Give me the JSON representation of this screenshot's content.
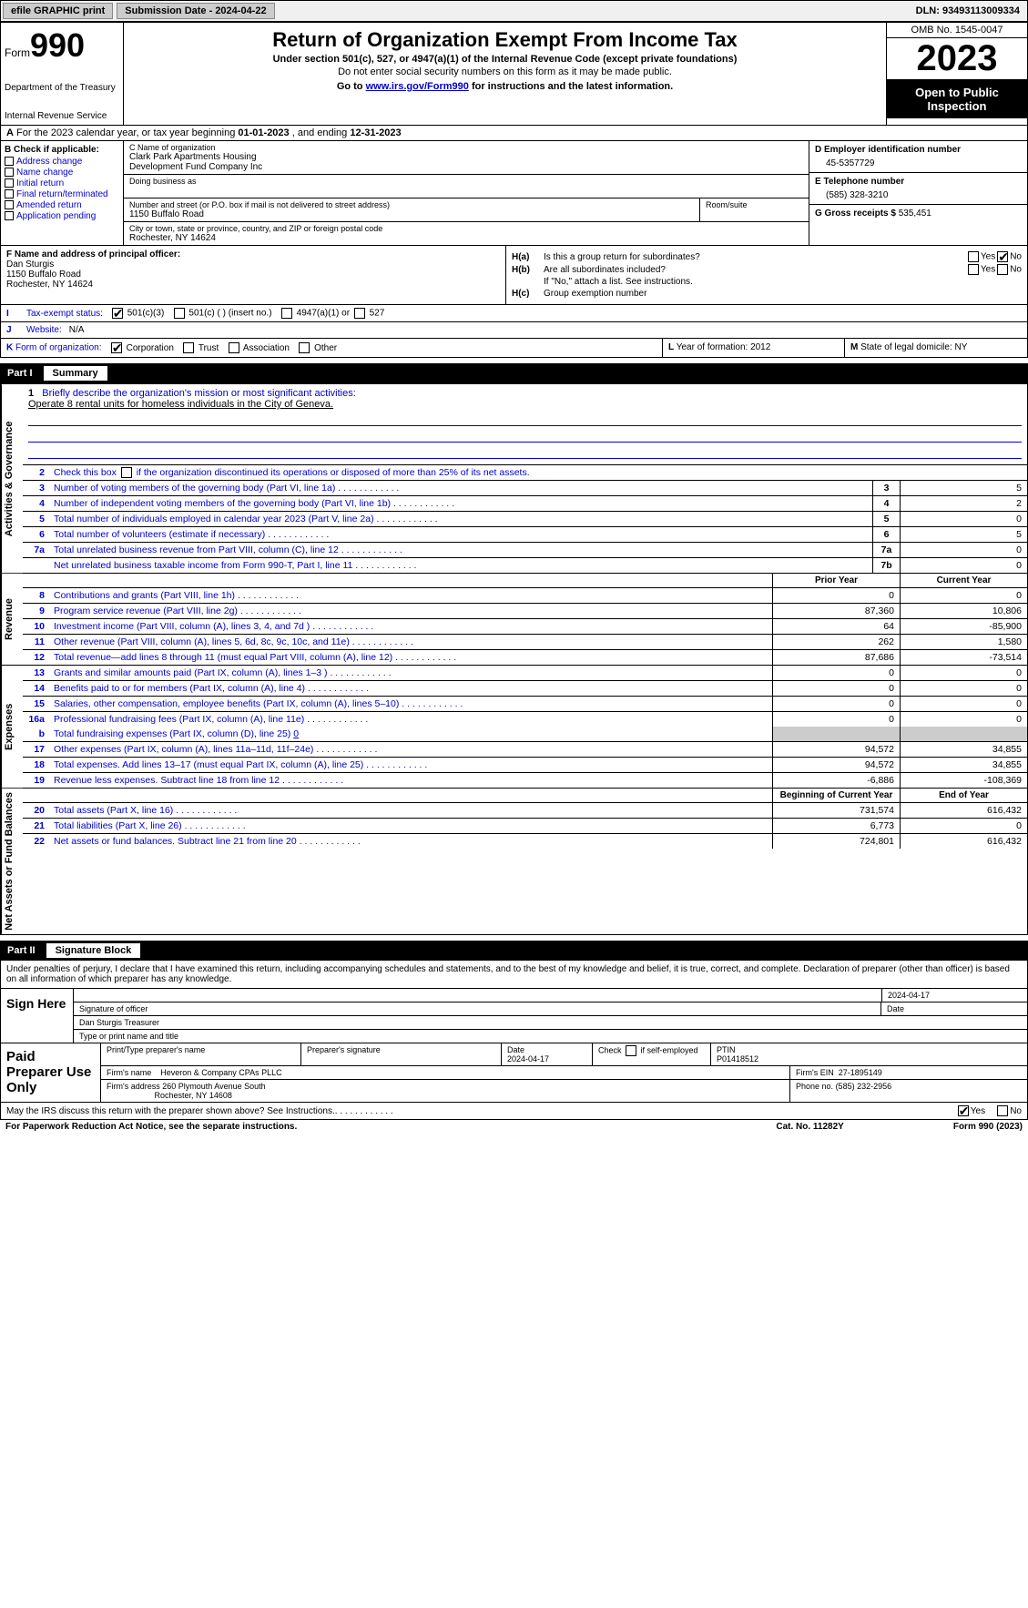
{
  "topbar": {
    "efile": "efile GRAPHIC print",
    "submission_label": "Submission Date - 2024-04-22",
    "dln_label": "DLN: 93493113009334"
  },
  "header": {
    "form_prefix": "Form",
    "form_number": "990",
    "dept": "Department of the Treasury",
    "irs": "Internal Revenue Service",
    "title": "Return of Organization Exempt From Income Tax",
    "sub1": "Under section 501(c), 527, or 4947(a)(1) of the Internal Revenue Code (except private foundations)",
    "sub2": "Do not enter social security numbers on this form as it may be made public.",
    "sub3_pre": "Go to ",
    "sub3_link": "www.irs.gov/Form990",
    "sub3_post": " for instructions and the latest information.",
    "omb": "OMB No. 1545-0047",
    "year": "2023",
    "inspection": "Open to Public Inspection"
  },
  "line_a": {
    "prefix": "A",
    "text": "For the 2023 calendar year, or tax year beginning ",
    "begin": "01-01-2023",
    "mid": " , and ending ",
    "end": "12-31-2023"
  },
  "section_b": {
    "header": "B Check if applicable:",
    "items": [
      "Address change",
      "Name change",
      "Initial return",
      "Final return/terminated",
      "Amended return",
      "Application pending"
    ]
  },
  "section_c": {
    "name_lbl": "C Name of organization",
    "name1": "Clark Park Apartments Housing",
    "name2": "Development Fund Company Inc",
    "dba_lbl": "Doing business as",
    "addr_lbl": "Number and street (or P.O. box if mail is not delivered to street address)",
    "addr": "1150 Buffalo Road",
    "room_lbl": "Room/suite",
    "city_lbl": "City or town, state or province, country, and ZIP or foreign postal code",
    "city": "Rochester, NY  14624"
  },
  "section_d": {
    "ein_lbl": "D Employer identification number",
    "ein": "45-5357729",
    "phone_lbl": "E Telephone number",
    "phone": "(585) 328-3210",
    "gross_lbl": "G Gross receipts $ ",
    "gross": "535,451"
  },
  "section_f": {
    "lbl": "F  Name and address of principal officer:",
    "name": "Dan Sturgis",
    "addr": "1150 Buffalo Road",
    "city": "Rochester, NY  14624"
  },
  "section_h": {
    "ha_lbl": "H(a)",
    "ha_txt": "Is this a group return for subordinates?",
    "hb_lbl": "H(b)",
    "hb_txt": "Are all subordinates included?",
    "hb_note": "If \"No,\" attach a list. See instructions.",
    "hc_lbl": "H(c)",
    "hc_txt": "Group exemption number",
    "yes": "Yes",
    "no": "No"
  },
  "section_i": {
    "lbl": "I",
    "txt": "Tax-exempt status:",
    "opts": [
      "501(c)(3)",
      "501(c) (  ) (insert no.)",
      "4947(a)(1) or",
      "527"
    ]
  },
  "section_j": {
    "lbl": "J",
    "txt": "Website:",
    "val": "N/A"
  },
  "section_k": {
    "lbl": "K",
    "txt": "Form of organization:",
    "opts": [
      "Corporation",
      "Trust",
      "Association",
      "Other"
    ]
  },
  "section_l": {
    "lbl": "L",
    "txt": "Year of formation: ",
    "val": "2012"
  },
  "section_m": {
    "lbl": "M",
    "txt": "State of legal domicile: ",
    "val": "NY"
  },
  "part1": {
    "hdr_num": "Part I",
    "hdr_txt": "Summary",
    "vtab1": "Activities & Governance",
    "vtab2": "Revenue",
    "vtab3": "Expenses",
    "vtab4": "Net Assets or Fund Balances",
    "line1_lbl": "Briefly describe the organization's mission or most significant activities:",
    "line1_val": "Operate 8 rental units for homeless individuals in the City of Geneva.",
    "line2": "Check this box       if the organization discontinued its operations or disposed of more than 25% of its net assets.",
    "rows_gov": [
      {
        "n": "3",
        "t": "Number of voting members of the governing body (Part VI, line 1a)",
        "b": "3",
        "v": "5"
      },
      {
        "n": "4",
        "t": "Number of independent voting members of the governing body (Part VI, line 1b)",
        "b": "4",
        "v": "2"
      },
      {
        "n": "5",
        "t": "Total number of individuals employed in calendar year 2023 (Part V, line 2a)",
        "b": "5",
        "v": "0"
      },
      {
        "n": "6",
        "t": "Total number of volunteers (estimate if necessary)",
        "b": "6",
        "v": "5"
      },
      {
        "n": "7a",
        "t": "Total unrelated business revenue from Part VIII, column (C), line 12",
        "b": "7a",
        "v": "0"
      },
      {
        "n": "",
        "t": "Net unrelated business taxable income from Form 990-T, Part I, line 11",
        "b": "7b",
        "v": "0"
      }
    ],
    "col_prior": "Prior Year",
    "col_current": "Current Year",
    "rows_rev": [
      {
        "n": "8",
        "t": "Contributions and grants (Part VIII, line 1h)",
        "p": "0",
        "c": "0"
      },
      {
        "n": "9",
        "t": "Program service revenue (Part VIII, line 2g)",
        "p": "87,360",
        "c": "10,806"
      },
      {
        "n": "10",
        "t": "Investment income (Part VIII, column (A), lines 3, 4, and 7d )",
        "p": "64",
        "c": "-85,900"
      },
      {
        "n": "11",
        "t": "Other revenue (Part VIII, column (A), lines 5, 6d, 8c, 9c, 10c, and 11e)",
        "p": "262",
        "c": "1,580"
      },
      {
        "n": "12",
        "t": "Total revenue—add lines 8 through 11 (must equal Part VIII, column (A), line 12)",
        "p": "87,686",
        "c": "-73,514"
      }
    ],
    "rows_exp": [
      {
        "n": "13",
        "t": "Grants and similar amounts paid (Part IX, column (A), lines 1–3 )",
        "p": "0",
        "c": "0"
      },
      {
        "n": "14",
        "t": "Benefits paid to or for members (Part IX, column (A), line 4)",
        "p": "0",
        "c": "0"
      },
      {
        "n": "15",
        "t": "Salaries, other compensation, employee benefits (Part IX, column (A), lines 5–10)",
        "p": "0",
        "c": "0"
      },
      {
        "n": "16a",
        "t": "Professional fundraising fees (Part IX, column (A), line 11e)",
        "p": "0",
        "c": "0"
      }
    ],
    "row_16b": {
      "n": "b",
      "t": "Total fundraising expenses (Part IX, column (D), line 25)",
      "v": "0"
    },
    "rows_exp2": [
      {
        "n": "17",
        "t": "Other expenses (Part IX, column (A), lines 11a–11d, 11f–24e)",
        "p": "94,572",
        "c": "34,855"
      },
      {
        "n": "18",
        "t": "Total expenses. Add lines 13–17 (must equal Part IX, column (A), line 25)",
        "p": "94,572",
        "c": "34,855"
      },
      {
        "n": "19",
        "t": "Revenue less expenses. Subtract line 18 from line 12",
        "p": "-6,886",
        "c": "-108,369"
      }
    ],
    "col_begin": "Beginning of Current Year",
    "col_end": "End of Year",
    "rows_net": [
      {
        "n": "20",
        "t": "Total assets (Part X, line 16)",
        "p": "731,574",
        "c": "616,432"
      },
      {
        "n": "21",
        "t": "Total liabilities (Part X, line 26)",
        "p": "6,773",
        "c": "0"
      },
      {
        "n": "22",
        "t": "Net assets or fund balances. Subtract line 21 from line 20",
        "p": "724,801",
        "c": "616,432"
      }
    ]
  },
  "part2": {
    "hdr_num": "Part II",
    "hdr_txt": "Signature Block",
    "intro": "Under penalties of perjury, I declare that I have examined this return, including accompanying schedules and statements, and to the best of my knowledge and belief, it is true, correct, and complete. Declaration of preparer (other than officer) is based on all information of which preparer has any knowledge."
  },
  "sign": {
    "left": "Sign Here",
    "sig_lbl": "Signature of officer",
    "date_lbl": "Date",
    "date_val": "2024-04-17",
    "name": "Dan Sturgis Treasurer",
    "name_lbl": "Type or print name and title"
  },
  "preparer": {
    "left": "Paid Preparer Use Only",
    "name_lbl": "Print/Type preparer's name",
    "sig_lbl": "Preparer's signature",
    "date_lbl": "Date",
    "date_val": "2024-04-17",
    "check_lbl": "Check         if self-employed",
    "ptin_lbl": "PTIN",
    "ptin": "P01418512",
    "firm_name_lbl": "Firm's name",
    "firm_name": "Heveron & Company CPAs PLLC",
    "firm_ein_lbl": "Firm's EIN",
    "firm_ein": "27-1895149",
    "firm_addr_lbl": "Firm's address",
    "firm_addr1": "260 Plymouth Avenue South",
    "firm_addr2": "Rochester, NY  14608",
    "phone_lbl": "Phone no.",
    "phone": "(585) 232-2956"
  },
  "discuss": {
    "txt": "May the IRS discuss this return with the preparer shown above? See Instructions.",
    "yes": "Yes",
    "no": "No"
  },
  "footer": {
    "left": "For Paperwork Reduction Act Notice, see the separate instructions.",
    "mid": "Cat. No. 11282Y",
    "right_pre": "Form ",
    "right_form": "990",
    "right_post": " (2023)"
  },
  "colors": {
    "link": "#0000cc",
    "border": "#000000",
    "grey": "#cccccc",
    "bg": "#ffffff"
  }
}
